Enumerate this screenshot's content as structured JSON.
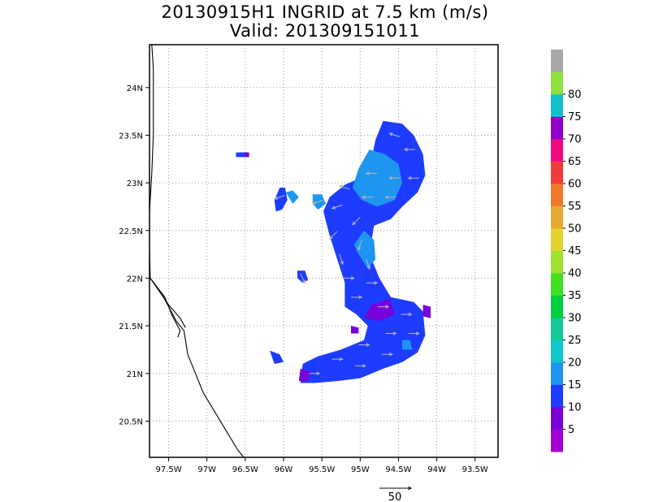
{
  "chart_data": {
    "type": "heatmap",
    "title": "20130915H1 INGRID at 7.5 km (m/s)",
    "subtitle": "Valid: 201309151011",
    "xlabel": "",
    "ylabel": "",
    "x_range": [
      -97.75,
      -93.2
    ],
    "y_range": [
      20.12,
      24.45
    ],
    "x_ticks": [
      {
        "v": -97.5,
        "label": "97.5W"
      },
      {
        "v": -97.0,
        "label": "97W"
      },
      {
        "v": -96.5,
        "label": "96.5W"
      },
      {
        "v": -96.0,
        "label": "96W"
      },
      {
        "v": -95.5,
        "label": "95.5W"
      },
      {
        "v": -95.0,
        "label": "95W"
      },
      {
        "v": -94.5,
        "label": "94.5W"
      },
      {
        "v": -94.0,
        "label": "94W"
      },
      {
        "v": -93.5,
        "label": "93.5W"
      }
    ],
    "y_ticks": [
      {
        "v": 20.5,
        "label": "20.5N"
      },
      {
        "v": 21.0,
        "label": "21N"
      },
      {
        "v": 21.5,
        "label": "21.5N"
      },
      {
        "v": 22.0,
        "label": "22N"
      },
      {
        "v": 22.5,
        "label": "22.5N"
      },
      {
        "v": 23.0,
        "label": "23N"
      },
      {
        "v": 23.5,
        "label": "23.5N"
      },
      {
        "v": 24.0,
        "label": "24N"
      }
    ],
    "grid": true,
    "colorbar": {
      "labels": [
        "5",
        "10",
        "15",
        "20",
        "25",
        "30",
        "35",
        "40",
        "45",
        "50",
        "55",
        "60",
        "65",
        "70",
        "75",
        "80"
      ],
      "colors": [
        "#a000d0",
        "#7800d8",
        "#1e3cff",
        "#1e96f0",
        "#10c8c8",
        "#10c898",
        "#00d040",
        "#40e020",
        "#a0e030",
        "#e6d22e",
        "#e6a82e",
        "#f0782a",
        "#f03c3c",
        "#f00a82",
        "#9000c8",
        "#10c0c8",
        "#90e040",
        "#a8a8a8"
      ]
    },
    "reference_vector": {
      "label": "50",
      "value": 50
    },
    "wind_speed_regions": [
      {
        "speed": 10,
        "lonlat": [
          [
            -94.7,
            23.65
          ],
          [
            -94.45,
            23.62
          ],
          [
            -94.3,
            23.5
          ],
          [
            -94.18,
            23.3
          ],
          [
            -94.15,
            23.08
          ],
          [
            -94.25,
            22.9
          ],
          [
            -94.45,
            22.75
          ],
          [
            -94.6,
            22.62
          ],
          [
            -94.82,
            22.55
          ],
          [
            -94.85,
            22.4
          ],
          [
            -94.85,
            22.2
          ],
          [
            -94.75,
            22.0
          ],
          [
            -94.6,
            21.8
          ],
          [
            -94.3,
            21.75
          ],
          [
            -94.18,
            21.65
          ],
          [
            -94.15,
            21.4
          ],
          [
            -94.25,
            21.22
          ],
          [
            -94.45,
            21.12
          ],
          [
            -94.7,
            21.05
          ],
          [
            -95.0,
            20.95
          ],
          [
            -95.3,
            20.92
          ],
          [
            -95.6,
            20.9
          ],
          [
            -95.78,
            20.9
          ],
          [
            -95.75,
            21.1
          ],
          [
            -95.55,
            21.18
          ],
          [
            -95.25,
            21.25
          ],
          [
            -94.95,
            21.35
          ],
          [
            -94.9,
            21.5
          ],
          [
            -95.05,
            21.62
          ],
          [
            -95.2,
            21.7
          ],
          [
            -95.2,
            21.95
          ],
          [
            -95.3,
            22.2
          ],
          [
            -95.4,
            22.45
          ],
          [
            -95.48,
            22.7
          ],
          [
            -95.4,
            22.85
          ],
          [
            -95.2,
            22.98
          ],
          [
            -95.0,
            23.05
          ],
          [
            -94.85,
            23.25
          ],
          [
            -94.8,
            23.45
          ]
        ]
      },
      {
        "speed": 15,
        "lonlat": [
          [
            -94.88,
            23.35
          ],
          [
            -94.68,
            23.3
          ],
          [
            -94.5,
            23.2
          ],
          [
            -94.45,
            23.0
          ],
          [
            -94.55,
            22.82
          ],
          [
            -94.78,
            22.75
          ],
          [
            -94.98,
            22.82
          ],
          [
            -95.1,
            22.95
          ],
          [
            -95.02,
            23.15
          ]
        ]
      },
      {
        "speed": 15,
        "lonlat": [
          [
            -94.95,
            22.5
          ],
          [
            -94.82,
            22.4
          ],
          [
            -94.8,
            22.2
          ],
          [
            -94.9,
            22.1
          ],
          [
            -95.02,
            22.25
          ],
          [
            -95.08,
            22.35
          ]
        ]
      },
      {
        "speed": 10,
        "lonlat": [
          [
            -96.12,
            22.82
          ],
          [
            -96.05,
            22.95
          ],
          [
            -95.98,
            22.95
          ],
          [
            -95.95,
            22.82
          ],
          [
            -96.02,
            22.72
          ],
          [
            -96.1,
            22.7
          ]
        ]
      },
      {
        "speed": 15,
        "lonlat": [
          [
            -95.97,
            22.9
          ],
          [
            -95.88,
            22.92
          ],
          [
            -95.8,
            22.85
          ],
          [
            -95.88,
            22.78
          ]
        ]
      },
      {
        "speed": 15,
        "lonlat": [
          [
            -95.62,
            22.88
          ],
          [
            -95.5,
            22.88
          ],
          [
            -95.45,
            22.78
          ],
          [
            -95.55,
            22.72
          ],
          [
            -95.62,
            22.78
          ]
        ]
      },
      {
        "speed": 10,
        "lonlat": [
          [
            -96.62,
            23.32
          ],
          [
            -96.48,
            23.32
          ],
          [
            -96.48,
            23.27
          ],
          [
            -96.62,
            23.27
          ]
        ]
      },
      {
        "speed": 10,
        "lonlat": [
          [
            -95.82,
            22.08
          ],
          [
            -95.72,
            22.08
          ],
          [
            -95.68,
            21.98
          ],
          [
            -95.75,
            21.95
          ],
          [
            -95.82,
            22.0
          ]
        ]
      },
      {
        "speed": 10,
        "lonlat": [
          [
            -96.18,
            21.24
          ],
          [
            -96.05,
            21.2
          ],
          [
            -96.0,
            21.12
          ],
          [
            -96.12,
            21.1
          ]
        ]
      },
      {
        "speed": 5,
        "lonlat": [
          [
            -94.85,
            21.72
          ],
          [
            -94.62,
            21.78
          ],
          [
            -94.55,
            21.62
          ],
          [
            -94.75,
            21.55
          ],
          [
            -94.95,
            21.58
          ]
        ]
      },
      {
        "speed": 5,
        "lonlat": [
          [
            -94.18,
            21.72
          ],
          [
            -94.08,
            21.7
          ],
          [
            -94.08,
            21.58
          ],
          [
            -94.18,
            21.6
          ]
        ]
      },
      {
        "speed": 5,
        "lonlat": [
          [
            -95.78,
            21.05
          ],
          [
            -95.65,
            21.02
          ],
          [
            -95.68,
            20.92
          ],
          [
            -95.8,
            20.92
          ]
        ]
      },
      {
        "speed": 5,
        "lonlat": [
          [
            -95.12,
            21.5
          ],
          [
            -95.02,
            21.48
          ],
          [
            -95.02,
            21.42
          ],
          [
            -95.12,
            21.42
          ]
        ]
      },
      {
        "speed": 5,
        "lonlat": [
          [
            -96.5,
            23.32
          ],
          [
            -96.45,
            23.32
          ],
          [
            -96.45,
            23.27
          ],
          [
            -96.5,
            23.27
          ]
        ]
      },
      {
        "speed": 15,
        "lonlat": [
          [
            -94.45,
            21.35
          ],
          [
            -94.35,
            21.35
          ],
          [
            -94.32,
            21.25
          ],
          [
            -94.45,
            21.25
          ]
        ]
      }
    ],
    "wind_vectors": [
      {
        "lon": -94.55,
        "lat": 23.5,
        "u": -3,
        "v": 1
      },
      {
        "lon": -94.35,
        "lat": 23.35,
        "u": -3,
        "v": 0
      },
      {
        "lon": -94.85,
        "lat": 23.1,
        "u": -3,
        "v": 0
      },
      {
        "lon": -94.55,
        "lat": 23.05,
        "u": -3,
        "v": 0
      },
      {
        "lon": -94.3,
        "lat": 23.05,
        "u": -3,
        "v": 0
      },
      {
        "lon": -95.2,
        "lat": 22.95,
        "u": -3,
        "v": 1
      },
      {
        "lon": -94.9,
        "lat": 22.85,
        "u": -3,
        "v": 0
      },
      {
        "lon": -94.6,
        "lat": 22.85,
        "u": -3,
        "v": 0
      },
      {
        "lon": -95.3,
        "lat": 22.75,
        "u": -3,
        "v": -1
      },
      {
        "lon": -95.05,
        "lat": 22.6,
        "u": -2,
        "v": -2
      },
      {
        "lon": -95.35,
        "lat": 22.45,
        "u": -2,
        "v": -2
      },
      {
        "lon": -95.0,
        "lat": 22.35,
        "u": -1,
        "v": -3
      },
      {
        "lon": -95.25,
        "lat": 22.2,
        "u": 1,
        "v": -3
      },
      {
        "lon": -94.9,
        "lat": 22.15,
        "u": 1,
        "v": -3
      },
      {
        "lon": -95.15,
        "lat": 22.0,
        "u": 3,
        "v": 0
      },
      {
        "lon": -94.85,
        "lat": 21.95,
        "u": 3,
        "v": 0
      },
      {
        "lon": -95.05,
        "lat": 21.8,
        "u": 3,
        "v": 0
      },
      {
        "lon": -94.7,
        "lat": 21.7,
        "u": 3,
        "v": 0
      },
      {
        "lon": -94.4,
        "lat": 21.62,
        "u": 3,
        "v": 0
      },
      {
        "lon": -94.6,
        "lat": 21.42,
        "u": 3,
        "v": 0
      },
      {
        "lon": -94.3,
        "lat": 21.42,
        "u": 3,
        "v": 0
      },
      {
        "lon": -94.95,
        "lat": 21.3,
        "u": 3,
        "v": 0
      },
      {
        "lon": -94.65,
        "lat": 21.2,
        "u": 3,
        "v": 0
      },
      {
        "lon": -95.3,
        "lat": 21.15,
        "u": 3,
        "v": 0
      },
      {
        "lon": -95.0,
        "lat": 21.08,
        "u": 3,
        "v": 0
      },
      {
        "lon": -95.6,
        "lat": 21.0,
        "u": 3,
        "v": 0
      },
      {
        "lon": -96.05,
        "lat": 22.85,
        "u": -3,
        "v": -1
      },
      {
        "lon": -95.55,
        "lat": 22.8,
        "u": -3,
        "v": -1
      },
      {
        "lon": -95.75,
        "lat": 22.0,
        "u": 1,
        "v": -2
      }
    ],
    "coastline": [
      [
        [
          -97.72,
          24.45
        ],
        [
          -97.7,
          24.2
        ],
        [
          -97.7,
          23.9
        ],
        [
          -97.7,
          23.5
        ],
        [
          -97.72,
          23.1
        ],
        [
          -97.75,
          22.7
        ],
        [
          -97.75,
          22.3
        ],
        [
          -97.74,
          22.0
        ]
      ],
      [
        [
          -97.74,
          22.0
        ],
        [
          -97.6,
          21.85
        ],
        [
          -97.5,
          21.7
        ],
        [
          -97.4,
          21.55
        ],
        [
          -97.3,
          21.45
        ],
        [
          -97.25,
          21.2
        ],
        [
          -97.15,
          21.0
        ],
        [
          -97.05,
          20.8
        ],
        [
          -96.9,
          20.6
        ],
        [
          -96.75,
          20.4
        ],
        [
          -96.6,
          20.2
        ],
        [
          -96.52,
          20.12
        ]
      ],
      [
        [
          -97.74,
          22.0
        ],
        [
          -97.55,
          21.8
        ],
        [
          -97.45,
          21.6
        ],
        [
          -97.35,
          21.45
        ],
        [
          -97.38,
          21.38
        ]
      ],
      [
        [
          -97.74,
          22.0
        ],
        [
          -97.5,
          21.72
        ],
        [
          -97.35,
          21.58
        ],
        [
          -97.28,
          21.48
        ]
      ]
    ]
  }
}
